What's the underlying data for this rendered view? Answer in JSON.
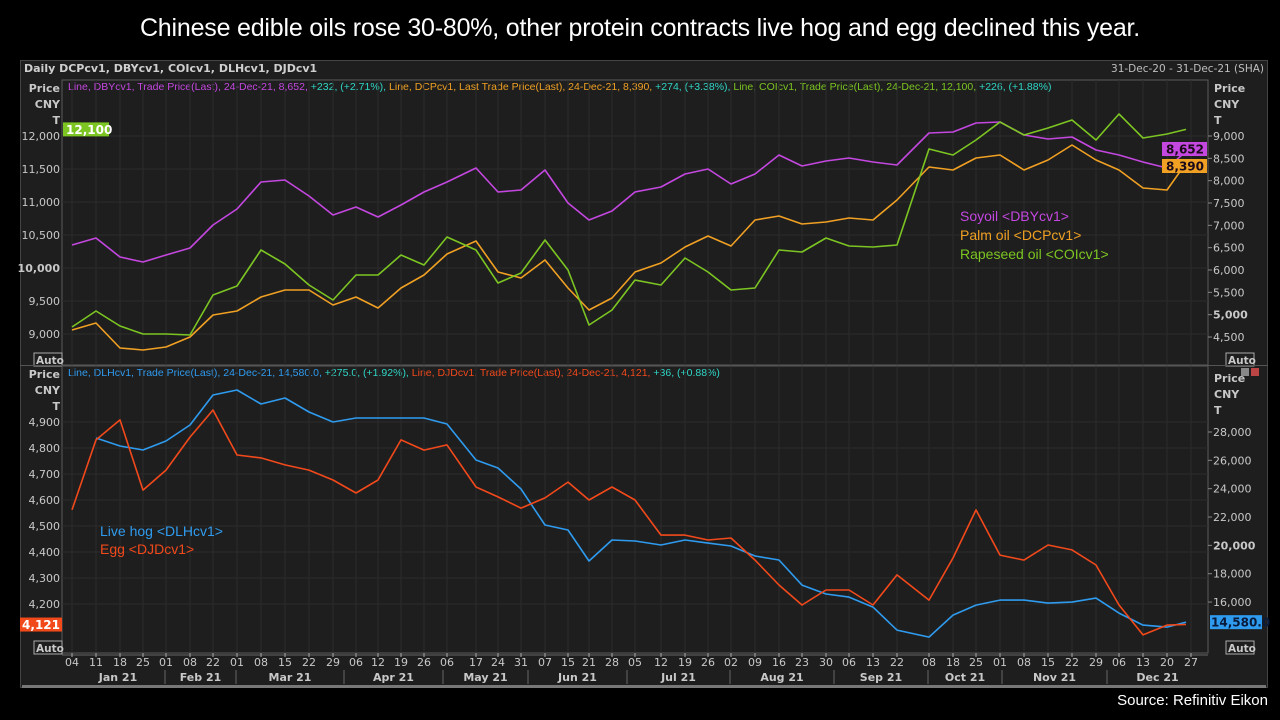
{
  "title": "Chinese edible oils rose 30-80%, other protein contracts live hog and egg declined this year.",
  "header": {
    "instruments": "Daily DCPcv1, DBYcv1, COIcv1, DLHcv1, DJDcv1",
    "date_range": "31-Dec-20 - 31-Dec-21 (SHA)"
  },
  "source": "Source: Refinitiv Eikon",
  "axis_unit_labels": [
    "Price",
    "CNY",
    "T"
  ],
  "auto_label": "Auto",
  "colors": {
    "soyoil": "#c447e0",
    "palm": "#f0a023",
    "rapeseed": "#7cc522",
    "hog": "#2f9bef",
    "egg": "#f2491b",
    "change": "#2fd6c6",
    "background": "#1e1e1e"
  },
  "top_legend": [
    {
      "text": "Line, DBYcv1, Trade Price(Last), 24-Dec-21, 8,652, ",
      "color": "#c447e0"
    },
    {
      "text": "+232, (+2.71%), ",
      "color": "#2fd6c6"
    },
    {
      "text": "Line, DCPcv1, Last Trade Price(Last), 24-Dec-21, 8,390, ",
      "color": "#f0a023"
    },
    {
      "text": "+274, (+3.38%), ",
      "color": "#2fd6c6"
    },
    {
      "text": "Line, COIcv1, Trade Price(Last), 24-Dec-21, 12,100, ",
      "color": "#7cc522"
    },
    {
      "text": "+226, (+1.88%)",
      "color": "#2fd6c6"
    }
  ],
  "bottom_legend": [
    {
      "text": "Line, DLHcv1, Trade Price(Last), 24-Dec-21, 14,580.0, ",
      "color": "#2f9bef"
    },
    {
      "text": "+275.0, (+1.92%), ",
      "color": "#2fd6c6"
    },
    {
      "text": "Line, DJDcv1, Trade Price(Last), 24-Dec-21, 4,121, ",
      "color": "#f2491b"
    },
    {
      "text": "+36, (+0.88%)",
      "color": "#2fd6c6"
    }
  ],
  "chart_data": [
    {
      "type": "line",
      "panel": "top",
      "x": [
        "2021-01-04",
        "2021-01-11",
        "2021-01-18",
        "2021-01-25",
        "2021-02-01",
        "2021-02-08",
        "2021-02-22",
        "2021-03-01",
        "2021-03-08",
        "2021-03-15",
        "2021-03-22",
        "2021-03-29",
        "2021-04-06",
        "2021-04-12",
        "2021-04-19",
        "2021-04-26",
        "2021-05-06",
        "2021-05-17",
        "2021-05-24",
        "2021-05-31",
        "2021-06-07",
        "2021-06-15",
        "2021-06-21",
        "2021-06-28",
        "2021-07-05",
        "2021-07-12",
        "2021-07-19",
        "2021-07-26",
        "2021-08-02",
        "2021-08-09",
        "2021-08-16",
        "2021-08-23",
        "2021-08-30",
        "2021-09-06",
        "2021-09-13",
        "2021-09-22",
        "2021-10-08",
        "2021-10-18",
        "2021-10-25",
        "2021-11-01",
        "2021-11-08",
        "2021-11-15",
        "2021-11-22",
        "2021-11-29",
        "2021-12-06",
        "2021-12-13",
        "2021-12-20",
        "2021-12-24"
      ],
      "left_axis": {
        "ticks": [
          9000,
          9500,
          10000,
          10500,
          11000,
          11500,
          12000
        ],
        "bold_tick": 10000,
        "ylim": [
          8800,
          12700
        ]
      },
      "right_axis": {
        "ticks": [
          4500,
          5000,
          5500,
          6000,
          6500,
          7000,
          7500,
          8000,
          8500,
          9000
        ],
        "bold_tick": 5000,
        "ylim": [
          4300,
          10100
        ]
      },
      "series": [
        {
          "name": "Soyoil <DBYcv1>",
          "axis": "right",
          "color": "#c447e0",
          "last_label": "8,652",
          "values": [
            6560,
            6716,
            6291,
            6179,
            6336,
            6492,
            7007,
            7365,
            7970,
            8015,
            7657,
            7231,
            7410,
            7186,
            7455,
            7746,
            7970,
            8284,
            7746,
            7791,
            8239,
            7500,
            7119,
            7321,
            7746,
            7858,
            8149,
            8261,
            7925,
            8149,
            8575,
            8328,
            8440,
            8507,
            8418,
            8351,
            9067,
            9090,
            9291,
            9313,
            9022,
            8933,
            8978,
            8687,
            8575,
            8418,
            8284,
            8652
          ]
        },
        {
          "name": "Palm oil <DCPcv1>",
          "axis": "right",
          "color": "#f0a023",
          "last_label": "8,390",
          "values": [
            4656,
            4813,
            4253,
            4209,
            4276,
            4500,
            4992,
            5082,
            5395,
            5552,
            5552,
            5216,
            5395,
            5149,
            5597,
            5888,
            6358,
            6649,
            5955,
            5821,
            6224,
            5597,
            5104,
            5373,
            5955,
            6156,
            6515,
            6761,
            6537,
            7119,
            7209,
            7030,
            7074,
            7164,
            7119,
            7567,
            8306,
            8239,
            8507,
            8575,
            8239,
            8463,
            8798,
            8463,
            8239,
            7836,
            7791,
            8390
          ]
        },
        {
          "name": "Rapeseed oil <COIcv1>",
          "axis": "left",
          "color": "#7cc522",
          "last_label": "12,100",
          "values": [
            9106,
            9349,
            9121,
            9000,
            9000,
            8985,
            9591,
            9727,
            10273,
            10061,
            9742,
            9515,
            9894,
            9894,
            10197,
            10045,
            10470,
            10273,
            9773,
            9924,
            10424,
            9970,
            9137,
            9364,
            9818,
            9742,
            10152,
            9940,
            9667,
            9697,
            10273,
            10243,
            10455,
            10333,
            10318,
            10348,
            11803,
            11712,
            11939,
            12212,
            12015,
            12121,
            12242,
            11939,
            12333,
            11970,
            12030,
            12100
          ]
        }
      ]
    },
    {
      "type": "line",
      "panel": "bottom",
      "x": [
        "2021-01-04",
        "2021-01-11",
        "2021-01-18",
        "2021-01-25",
        "2021-02-01",
        "2021-02-08",
        "2021-02-22",
        "2021-03-01",
        "2021-03-08",
        "2021-03-15",
        "2021-03-22",
        "2021-03-29",
        "2021-04-06",
        "2021-04-12",
        "2021-04-19",
        "2021-04-26",
        "2021-05-06",
        "2021-05-17",
        "2021-05-24",
        "2021-05-31",
        "2021-06-07",
        "2021-06-15",
        "2021-06-21",
        "2021-06-28",
        "2021-07-05",
        "2021-07-12",
        "2021-07-19",
        "2021-07-26",
        "2021-08-02",
        "2021-08-09",
        "2021-08-16",
        "2021-08-23",
        "2021-08-30",
        "2021-09-06",
        "2021-09-13",
        "2021-09-22",
        "2021-10-08",
        "2021-10-18",
        "2021-10-25",
        "2021-11-01",
        "2021-11-08",
        "2021-11-15",
        "2021-11-22",
        "2021-11-29",
        "2021-12-06",
        "2021-12-13",
        "2021-12-20",
        "2021-12-24"
      ],
      "left_axis": {
        "ticks": [
          4200,
          4300,
          4400,
          4500,
          4600,
          4700,
          4800,
          4900
        ],
        "ylim": [
          4020,
          5000
        ]
      },
      "right_axis": {
        "ticks": [
          16000,
          18000,
          20000,
          22000,
          24000,
          26000,
          28000
        ],
        "bold_tick": 20000,
        "ylim": [
          13000,
          31300
        ]
      },
      "series": [
        {
          "name": "Live hog <DLHcv1>",
          "axis": "right",
          "color": "#2f9bef",
          "last_label": "14,580.0",
          "values": [
            null,
            27576,
            27012,
            26729,
            27365,
            28494,
            30612,
            30965,
            29977,
            30400,
            29412,
            28706,
            28988,
            28988,
            28988,
            28988,
            28565,
            26023,
            25458,
            23976,
            21434,
            21081,
            18893,
            20375,
            20305,
            20022,
            20375,
            20163,
            19952,
            19246,
            18964,
            17199,
            16564,
            16352,
            15646,
            14021,
            13527,
            15080,
            15786,
            16139,
            16139,
            15928,
            15998,
            16280,
            15221,
            14374,
            14233,
            14580
          ]
        },
        {
          "name": "Egg <DJDcv1>",
          "axis": "left",
          "color": "#f2491b",
          "last_label": "4,121",
          "values": [
            4562,
            4831,
            4908,
            4638,
            4715,
            4842,
            4946,
            4773,
            4762,
            4735,
            4715,
            4677,
            4627,
            4677,
            4831,
            4792,
            4812,
            4650,
            4612,
            4569,
            4608,
            4669,
            4600,
            4650,
            4600,
            4465,
            4465,
            4446,
            4454,
            4369,
            4273,
            4196,
            4254,
            4254,
            4196,
            4312,
            4215,
            4377,
            4562,
            4388,
            4369,
            4427,
            4408,
            4350,
            4196,
            4081,
            4119,
            4121
          ]
        }
      ]
    }
  ],
  "x_axis": {
    "day_ticks": [
      "04",
      "11",
      "18",
      "25",
      "01",
      "08",
      "22",
      "01",
      "08",
      "15",
      "22",
      "29",
      "06",
      "12",
      "19",
      "26",
      "06",
      "17",
      "24",
      "31",
      "07",
      "15",
      "21",
      "28",
      "05",
      "12",
      "19",
      "26",
      "02",
      "09",
      "16",
      "23",
      "30",
      "06",
      "13",
      "22",
      "08",
      "18",
      "25",
      "01",
      "08",
      "15",
      "22",
      "29",
      "06",
      "13",
      "20",
      "27"
    ],
    "months": [
      "Jan 21",
      "Feb 21",
      "Mar 21",
      "Apr 21",
      "May 21",
      "Jun 21",
      "Jul 21",
      "Aug 21",
      "Sep 21",
      "Oct 21",
      "Nov 21",
      "Dec 21"
    ]
  }
}
